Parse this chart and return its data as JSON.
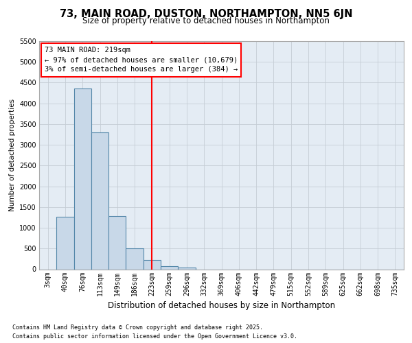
{
  "title": "73, MAIN ROAD, DUSTON, NORTHAMPTON, NN5 6JN",
  "subtitle": "Size of property relative to detached houses in Northampton",
  "xlabel": "Distribution of detached houses by size in Northampton",
  "ylabel": "Number of detached properties",
  "footnote1": "Contains HM Land Registry data © Crown copyright and database right 2025.",
  "footnote2": "Contains public sector information licensed under the Open Government Licence v3.0.",
  "categories": [
    "3sqm",
    "40sqm",
    "76sqm",
    "113sqm",
    "149sqm",
    "186sqm",
    "223sqm",
    "259sqm",
    "296sqm",
    "332sqm",
    "369sqm",
    "406sqm",
    "442sqm",
    "479sqm",
    "515sqm",
    "552sqm",
    "589sqm",
    "625sqm",
    "662sqm",
    "698sqm",
    "735sqm"
  ],
  "values": [
    0,
    1270,
    4360,
    3300,
    1280,
    510,
    220,
    75,
    35,
    0,
    0,
    0,
    0,
    0,
    0,
    0,
    0,
    0,
    0,
    0,
    0
  ],
  "bar_color": "#c8d8e8",
  "bar_edge_color": "#5588aa",
  "vline_position": 6,
  "vline_color": "red",
  "ylim": [
    0,
    5500
  ],
  "yticks": [
    0,
    500,
    1000,
    1500,
    2000,
    2500,
    3000,
    3500,
    4000,
    4500,
    5000,
    5500
  ],
  "annotation_title": "73 MAIN ROAD: 219sqm",
  "annotation_line1": "← 97% of detached houses are smaller (10,679)",
  "annotation_line2": "3% of semi-detached houses are larger (384) →",
  "grid_color": "#c5cdd5",
  "bg_color": "#e4ecf4",
  "title_fontsize": 10.5,
  "subtitle_fontsize": 8.5,
  "xlabel_fontsize": 8.5,
  "ylabel_fontsize": 7.5,
  "tick_fontsize": 7,
  "annot_fontsize": 7.5,
  "footnote_fontsize": 6
}
